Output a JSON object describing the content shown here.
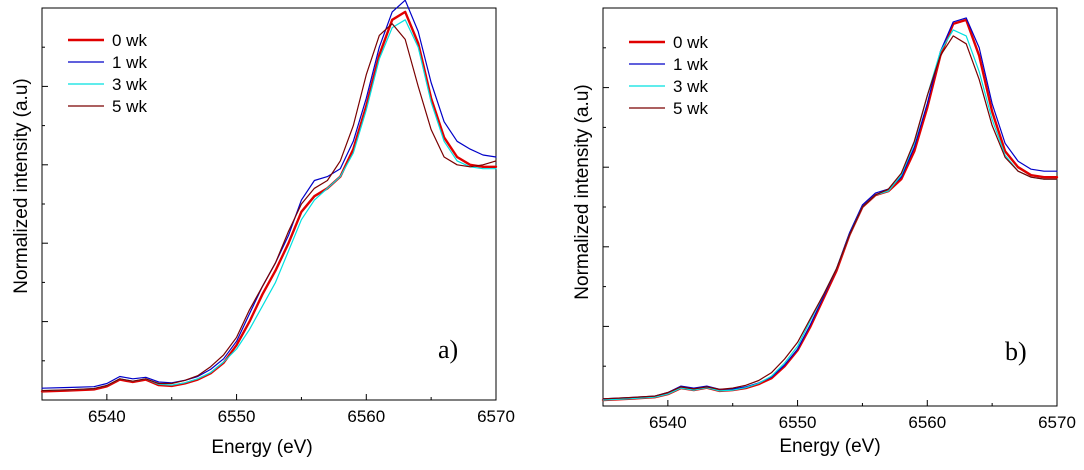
{
  "chart_data": [
    {
      "type": "line",
      "panel_label": "a)",
      "xlabel": "Energy (eV)",
      "ylabel": "Normalized intensity (a.u)",
      "xlim": [
        6535,
        6570
      ],
      "ylim": [
        0,
        1.0
      ],
      "xticks": [
        6540,
        6550,
        6560,
        6570
      ],
      "xticklabels": [
        "6540",
        "6550",
        "6560",
        "6570"
      ],
      "y_tick_labels_shown": false,
      "legend_position": "top-left",
      "series": [
        {
          "name": "0 wk",
          "color": "#e00000",
          "width": 2.4,
          "x": [
            6535,
            6537,
            6539,
            6540,
            6541,
            6542,
            6543,
            6544,
            6545,
            6546,
            6547,
            6548,
            6549,
            6550,
            6551,
            6552,
            6553,
            6554,
            6555,
            6556,
            6557,
            6558,
            6559,
            6560,
            6561,
            6562,
            6563,
            6564,
            6565,
            6566,
            6567,
            6568,
            6569,
            6570
          ],
          "y": [
            0.022,
            0.024,
            0.027,
            0.035,
            0.052,
            0.046,
            0.052,
            0.038,
            0.036,
            0.042,
            0.052,
            0.068,
            0.095,
            0.14,
            0.2,
            0.27,
            0.33,
            0.4,
            0.48,
            0.52,
            0.54,
            0.57,
            0.64,
            0.75,
            0.88,
            0.97,
            0.99,
            0.91,
            0.77,
            0.67,
            0.62,
            0.6,
            0.595,
            0.595
          ]
        },
        {
          "name": "1 wk",
          "color": "#0000c8",
          "width": 1.2,
          "x": [
            6535,
            6537,
            6539,
            6540,
            6541,
            6542,
            6543,
            6544,
            6545,
            6546,
            6547,
            6548,
            6549,
            6550,
            6551,
            6552,
            6553,
            6554,
            6555,
            6556,
            6557,
            6558,
            6559,
            6560,
            6561,
            6562,
            6563,
            6564,
            6565,
            6566,
            6567,
            6568,
            6569,
            6570
          ],
          "y": [
            0.03,
            0.032,
            0.034,
            0.042,
            0.06,
            0.054,
            0.058,
            0.046,
            0.044,
            0.05,
            0.06,
            0.078,
            0.105,
            0.15,
            0.22,
            0.29,
            0.35,
            0.42,
            0.51,
            0.56,
            0.57,
            0.59,
            0.66,
            0.77,
            0.9,
            0.99,
            1.02,
            0.94,
            0.81,
            0.71,
            0.66,
            0.64,
            0.625,
            0.62
          ]
        },
        {
          "name": "3 wk",
          "color": "#00e0e0",
          "width": 1.2,
          "x": [
            6535,
            6537,
            6539,
            6540,
            6541,
            6542,
            6543,
            6544,
            6545,
            6546,
            6547,
            6548,
            6549,
            6550,
            6551,
            6552,
            6553,
            6554,
            6555,
            6556,
            6557,
            6558,
            6559,
            6560,
            6561,
            6562,
            6563,
            6564,
            6565,
            6566,
            6567,
            6568,
            6569,
            6570
          ],
          "y": [
            0.024,
            0.026,
            0.029,
            0.037,
            0.054,
            0.048,
            0.054,
            0.04,
            0.038,
            0.044,
            0.054,
            0.07,
            0.097,
            0.13,
            0.18,
            0.24,
            0.3,
            0.38,
            0.46,
            0.51,
            0.54,
            0.57,
            0.63,
            0.74,
            0.87,
            0.95,
            0.97,
            0.9,
            0.76,
            0.66,
            0.61,
            0.595,
            0.59,
            0.59
          ]
        },
        {
          "name": "5 wk",
          "color": "#7a0000",
          "width": 1.2,
          "x": [
            6535,
            6537,
            6539,
            6540,
            6541,
            6542,
            6543,
            6544,
            6545,
            6546,
            6547,
            6548,
            6549,
            6550,
            6551,
            6552,
            6553,
            6554,
            6555,
            6556,
            6557,
            6558,
            6559,
            6560,
            6561,
            6562,
            6563,
            6564,
            6565,
            6566,
            6567,
            6568,
            6569,
            6570
          ],
          "y": [
            0.024,
            0.026,
            0.029,
            0.037,
            0.054,
            0.048,
            0.054,
            0.042,
            0.042,
            0.05,
            0.062,
            0.085,
            0.115,
            0.16,
            0.23,
            0.29,
            0.35,
            0.43,
            0.5,
            0.54,
            0.56,
            0.61,
            0.7,
            0.83,
            0.93,
            0.96,
            0.92,
            0.8,
            0.69,
            0.62,
            0.6,
            0.595,
            0.6,
            0.61
          ]
        }
      ]
    },
    {
      "type": "line",
      "panel_label": "b)",
      "xlabel": "Energy (eV)",
      "ylabel": "Normalized intensity (a.u)",
      "xlim": [
        6535,
        6570
      ],
      "ylim": [
        0,
        1.0
      ],
      "xticks": [
        6540,
        6550,
        6560,
        6570
      ],
      "xticklabels": [
        "6540",
        "6550",
        "6560",
        "6570"
      ],
      "y_tick_labels_shown": false,
      "legend_position": "top-left",
      "series": [
        {
          "name": "0 wk",
          "color": "#e00000",
          "width": 2.4,
          "x": [
            6535,
            6537,
            6539,
            6540,
            6541,
            6542,
            6543,
            6544,
            6545,
            6546,
            6547,
            6548,
            6549,
            6550,
            6551,
            6552,
            6553,
            6554,
            6555,
            6556,
            6557,
            6558,
            6559,
            6560,
            6561,
            6562,
            6563,
            6564,
            6565,
            6566,
            6567,
            6568,
            6569,
            6570
          ],
          "y": [
            0.015,
            0.018,
            0.022,
            0.03,
            0.045,
            0.04,
            0.046,
            0.038,
            0.04,
            0.045,
            0.055,
            0.07,
            0.1,
            0.14,
            0.2,
            0.27,
            0.34,
            0.43,
            0.5,
            0.53,
            0.54,
            0.57,
            0.64,
            0.75,
            0.88,
            0.96,
            0.97,
            0.88,
            0.74,
            0.64,
            0.6,
            0.58,
            0.575,
            0.575
          ]
        },
        {
          "name": "1 wk",
          "color": "#0000c8",
          "width": 1.2,
          "x": [
            6535,
            6537,
            6539,
            6540,
            6541,
            6542,
            6543,
            6544,
            6545,
            6546,
            6547,
            6548,
            6549,
            6550,
            6551,
            6552,
            6553,
            6554,
            6555,
            6556,
            6557,
            6558,
            6559,
            6560,
            6561,
            6562,
            6563,
            6564,
            6565,
            6566,
            6567,
            6568,
            6569,
            6570
          ],
          "y": [
            0.018,
            0.021,
            0.025,
            0.034,
            0.05,
            0.045,
            0.05,
            0.042,
            0.043,
            0.048,
            0.058,
            0.073,
            0.103,
            0.143,
            0.205,
            0.275,
            0.345,
            0.435,
            0.505,
            0.535,
            0.545,
            0.575,
            0.65,
            0.76,
            0.89,
            0.965,
            0.975,
            0.9,
            0.76,
            0.66,
            0.615,
            0.595,
            0.59,
            0.59
          ]
        },
        {
          "name": "3 wk",
          "color": "#00e0e0",
          "width": 1.2,
          "x": [
            6535,
            6537,
            6539,
            6540,
            6541,
            6542,
            6543,
            6544,
            6545,
            6546,
            6547,
            6548,
            6549,
            6550,
            6551,
            6552,
            6553,
            6554,
            6555,
            6556,
            6557,
            6558,
            6559,
            6560,
            6561,
            6562,
            6563,
            6564,
            6565,
            6566,
            6567,
            6568,
            6569,
            6570
          ],
          "y": [
            0.015,
            0.018,
            0.022,
            0.03,
            0.045,
            0.04,
            0.046,
            0.038,
            0.04,
            0.046,
            0.057,
            0.075,
            0.108,
            0.15,
            0.215,
            0.28,
            0.345,
            0.43,
            0.5,
            0.53,
            0.54,
            0.58,
            0.66,
            0.78,
            0.89,
            0.945,
            0.93,
            0.84,
            0.72,
            0.63,
            0.59,
            0.575,
            0.57,
            0.57
          ]
        },
        {
          "name": "5 wk",
          "color": "#7a0000",
          "width": 1.2,
          "x": [
            6535,
            6537,
            6539,
            6540,
            6541,
            6542,
            6543,
            6544,
            6545,
            6546,
            6547,
            6548,
            6549,
            6550,
            6551,
            6552,
            6553,
            6554,
            6555,
            6556,
            6557,
            6558,
            6559,
            6560,
            6561,
            6562,
            6563,
            6564,
            6565,
            6566,
            6567,
            6568,
            6569,
            6570
          ],
          "y": [
            0.018,
            0.021,
            0.025,
            0.034,
            0.048,
            0.043,
            0.048,
            0.042,
            0.045,
            0.052,
            0.064,
            0.084,
            0.118,
            0.16,
            0.22,
            0.28,
            0.345,
            0.43,
            0.5,
            0.53,
            0.545,
            0.585,
            0.665,
            0.78,
            0.88,
            0.93,
            0.91,
            0.82,
            0.705,
            0.625,
            0.59,
            0.575,
            0.57,
            0.57
          ]
        }
      ]
    }
  ]
}
